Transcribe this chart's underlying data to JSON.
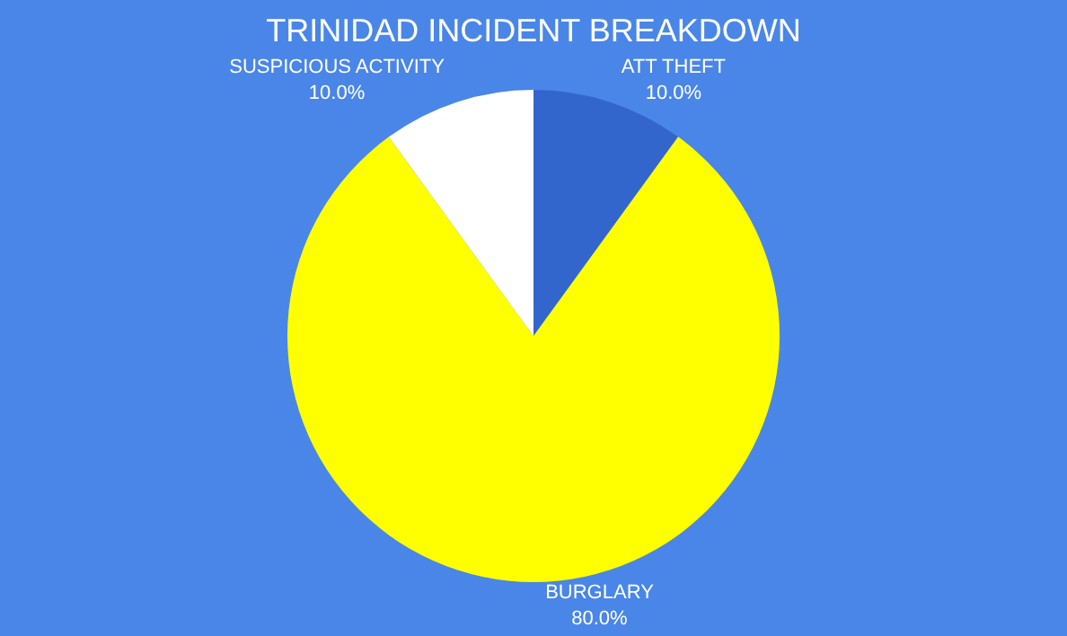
{
  "chart_data": {
    "type": "pie",
    "title": "TRINIDAD INCIDENT BREAKDOWN",
    "categories": [
      "ATT THEFT",
      "BURGLARY",
      "SUSPICIOUS ACTIVITY"
    ],
    "values": [
      10,
      80,
      10
    ],
    "colors": [
      "#3366cc",
      "#ffff00",
      "#ffffff"
    ],
    "value_labels": [
      "10.0%",
      "80.0%",
      "10.0%"
    ],
    "legend": false
  }
}
